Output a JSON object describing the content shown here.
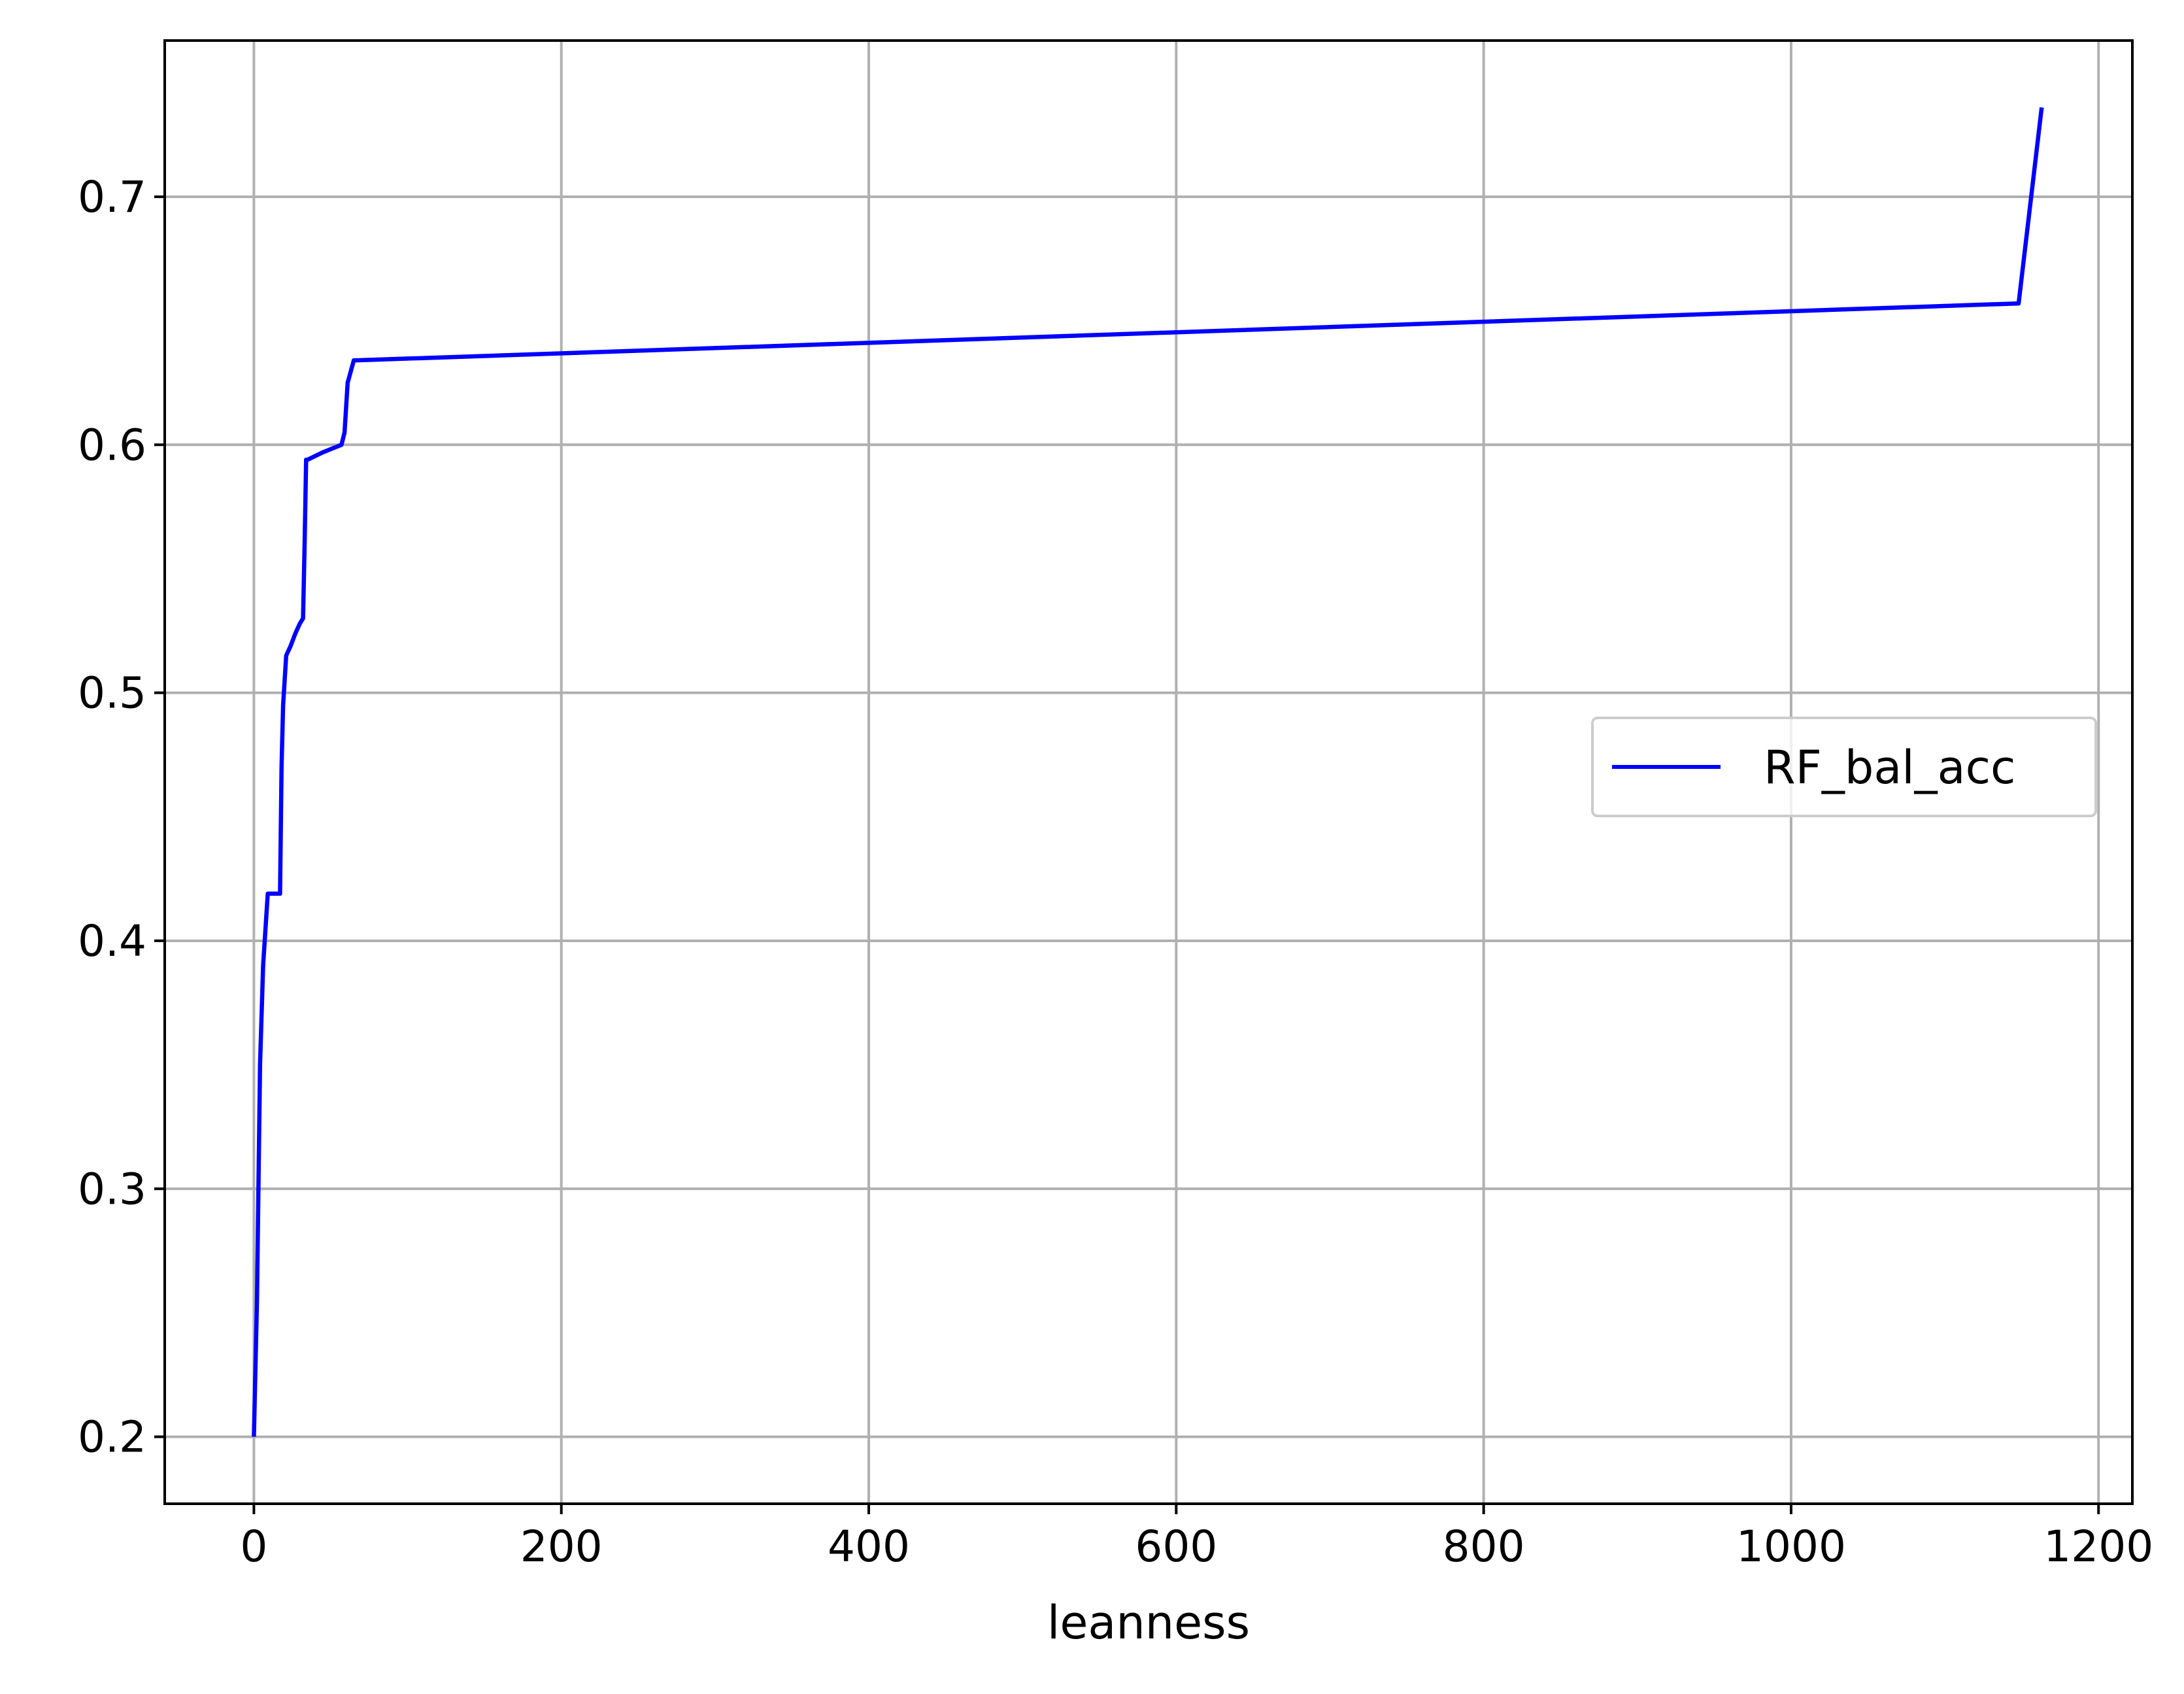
{
  "chart_data": {
    "type": "line",
    "title": "",
    "xlabel": "leanness",
    "ylabel": "",
    "xlim": [
      -58,
      1222
    ],
    "ylim": [
      0.173,
      0.763
    ],
    "xticks": [
      0,
      200,
      400,
      600,
      800,
      1000,
      1200
    ],
    "xtick_labels": [
      "0",
      "200",
      "400",
      "600",
      "800",
      "1000",
      "1200"
    ],
    "yticks": [
      0.2,
      0.3,
      0.4,
      0.5,
      0.6,
      0.7
    ],
    "ytick_labels": [
      "0.2",
      "0.3",
      "0.4",
      "0.5",
      "0.6",
      "0.7"
    ],
    "grid": true,
    "legend_position": "center right",
    "series": [
      {
        "name": "RF_bal_acc",
        "color": "#0000ff",
        "x": [
          0,
          2,
          4,
          6,
          9,
          12,
          17,
          18,
          19,
          21,
          24,
          27,
          30,
          32,
          33,
          34,
          35,
          45,
          57,
          59,
          61,
          65,
          1148,
          1163
        ],
        "y": [
          0.2,
          0.255,
          0.35,
          0.39,
          0.419,
          0.419,
          0.419,
          0.47,
          0.495,
          0.515,
          0.519,
          0.524,
          0.528,
          0.53,
          0.56,
          0.594,
          0.594,
          0.597,
          0.6,
          0.605,
          0.625,
          0.634,
          0.657,
          0.736
        ]
      }
    ]
  }
}
